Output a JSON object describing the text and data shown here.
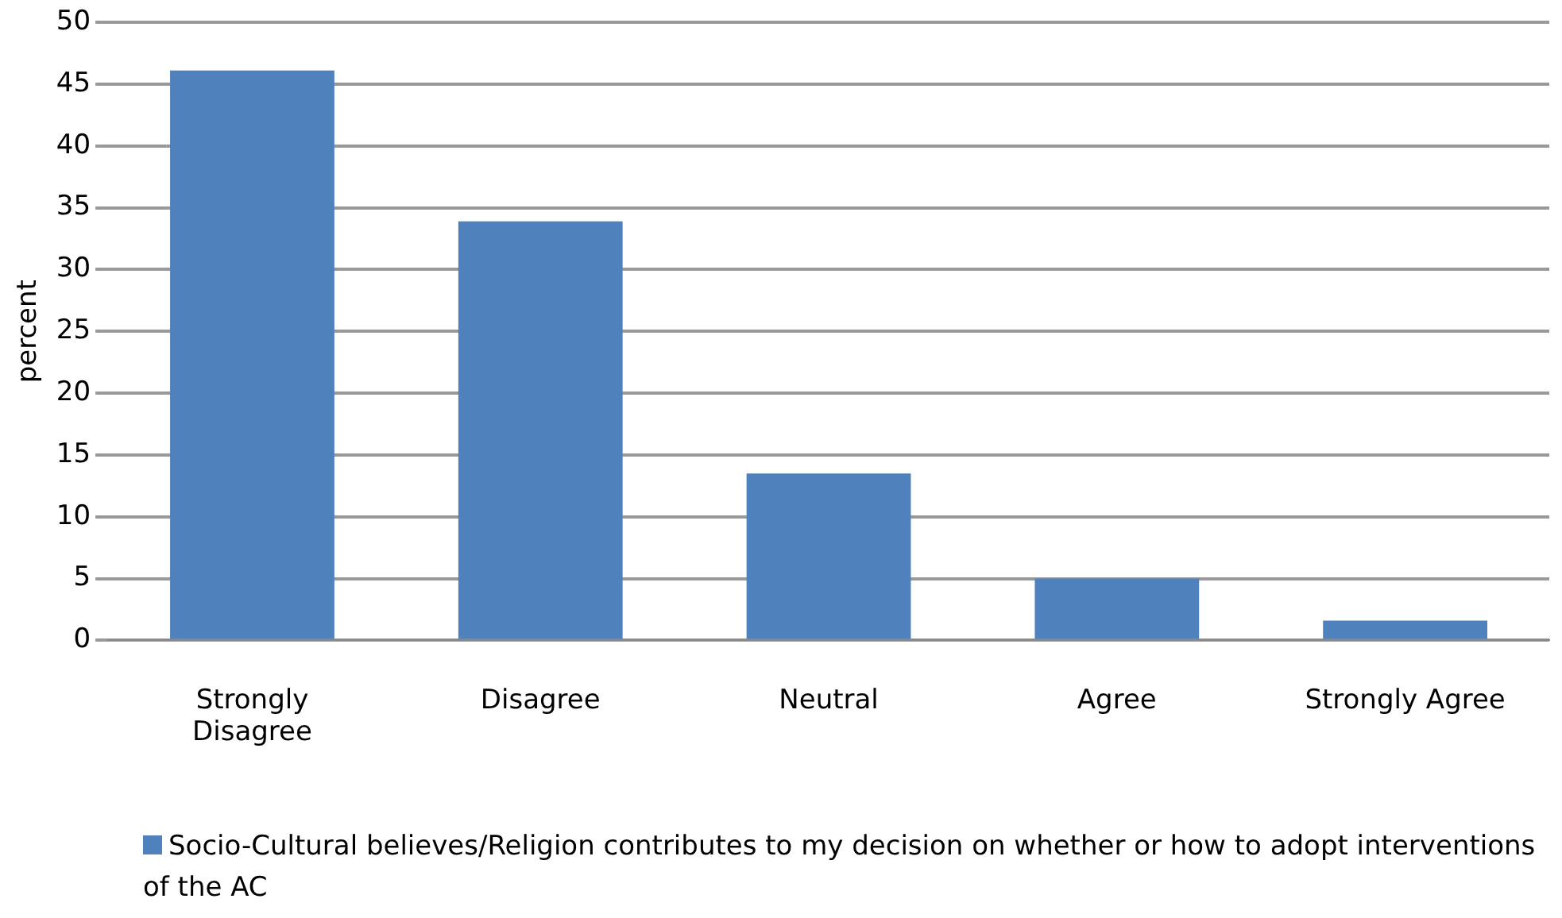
{
  "chart_data": {
    "type": "bar",
    "ylabel": "percent",
    "categories": [
      "Strongly Disagree",
      "Disagree",
      "Neutral",
      "Agree",
      "Strongly Agree"
    ],
    "series": [
      {
        "name": "Socio-Cultural believes/Religion contributes to my decision on whether or how to adopt interventions of the AC",
        "color": "#4f81bd",
        "values": [
          46.1,
          33.9,
          13.5,
          5,
          1.6
        ]
      }
    ],
    "ylim": [
      0,
      50
    ],
    "yticks": [
      0,
      5,
      10,
      15,
      20,
      25,
      30,
      35,
      40,
      45,
      50
    ],
    "grid": "y",
    "legend": "bottom"
  }
}
